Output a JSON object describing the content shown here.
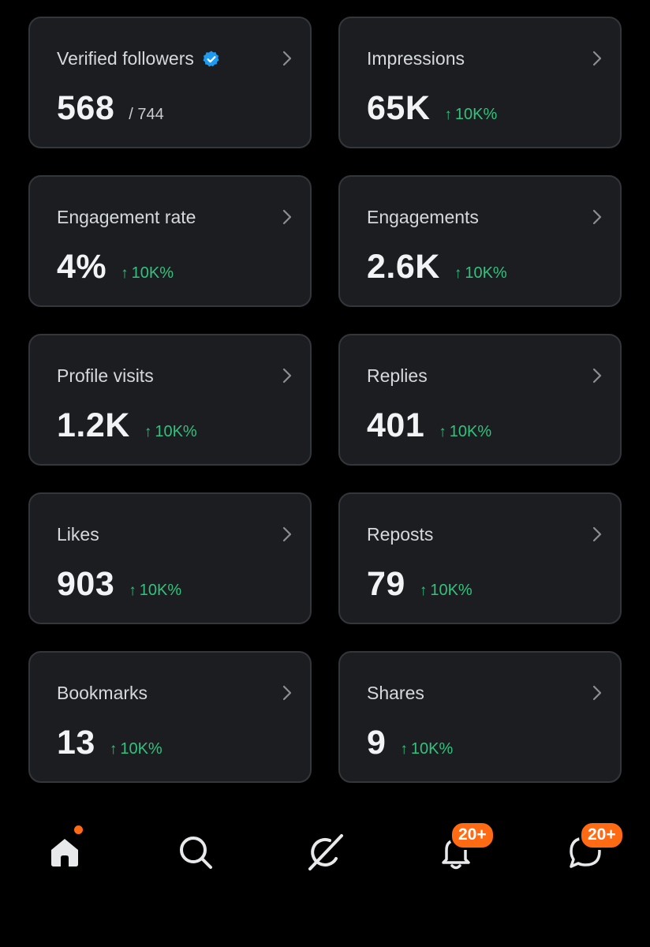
{
  "metrics": [
    {
      "id": "verified-followers",
      "title": "Verified followers",
      "value": "568",
      "sub": "/ 744",
      "change": null,
      "verified": true
    },
    {
      "id": "impressions",
      "title": "Impressions",
      "value": "65K",
      "change": "10K%"
    },
    {
      "id": "engagement-rate",
      "title": "Engagement rate",
      "value": "4%",
      "change": "10K%"
    },
    {
      "id": "engagements",
      "title": "Engagements",
      "value": "2.6K",
      "change": "10K%"
    },
    {
      "id": "profile-visits",
      "title": "Profile visits",
      "value": "1.2K",
      "change": "10K%"
    },
    {
      "id": "replies",
      "title": "Replies",
      "value": "401",
      "change": "10K%"
    },
    {
      "id": "likes",
      "title": "Likes",
      "value": "903",
      "change": "10K%"
    },
    {
      "id": "reposts",
      "title": "Reposts",
      "value": "79",
      "change": "10K%"
    },
    {
      "id": "bookmarks",
      "title": "Bookmarks",
      "value": "13",
      "change": "10K%"
    },
    {
      "id": "shares",
      "title": "Shares",
      "value": "9",
      "change": "10K%"
    }
  ],
  "change_arrow": "↑",
  "icons": {
    "verified": "verified-badge-icon",
    "chevron": "chevron-right-icon"
  },
  "nav": {
    "items": [
      {
        "id": "home",
        "icon": "home-icon",
        "has_dot": true
      },
      {
        "id": "search",
        "icon": "search-icon"
      },
      {
        "id": "grok",
        "icon": "grok-icon"
      },
      {
        "id": "notifications",
        "icon": "bell-icon",
        "badge": "20+"
      },
      {
        "id": "messages",
        "icon": "message-icon",
        "badge": "20+"
      }
    ]
  },
  "colors": {
    "background": "#000000",
    "card": "#1c1d21",
    "card_border": "#33363b",
    "positive": "#32c27d",
    "verified": "#1d9bf0",
    "badge": "#ff6a13"
  }
}
